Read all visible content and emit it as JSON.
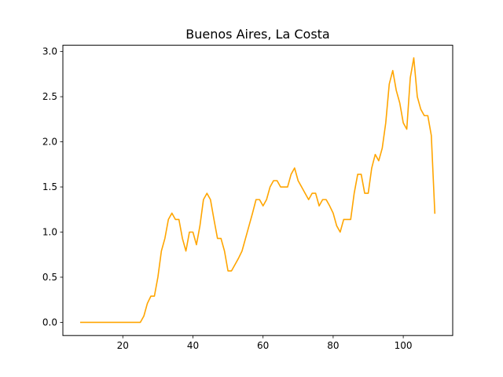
{
  "chart_data": {
    "type": "line",
    "title": "Buenos Aires, La Costa",
    "xlabel": "",
    "ylabel": "",
    "xlim": [
      2.9,
      114.1
    ],
    "ylim": [
      -0.146,
      3.07
    ],
    "xticks": [
      20,
      40,
      60,
      80,
      100
    ],
    "yticks": [
      0.0,
      0.5,
      1.0,
      1.5,
      2.0,
      2.5,
      3.0
    ],
    "xtick_labels": [
      "20",
      "40",
      "60",
      "80",
      "100"
    ],
    "ytick_labels": [
      "0.0",
      "0.5",
      "1.0",
      "1.5",
      "2.0",
      "2.5",
      "3.0"
    ],
    "grid": false,
    "series": [
      {
        "color": "#ffa500",
        "x": [
          8,
          9,
          10,
          11,
          12,
          13,
          14,
          15,
          16,
          17,
          18,
          19,
          20,
          21,
          22,
          23,
          24,
          25,
          26,
          27,
          28,
          29,
          30,
          31,
          32,
          33,
          34,
          35,
          36,
          37,
          38,
          39,
          40,
          41,
          42,
          43,
          44,
          45,
          46,
          47,
          48,
          49,
          50,
          51,
          52,
          53,
          54,
          55,
          56,
          57,
          58,
          59,
          60,
          61,
          62,
          63,
          64,
          65,
          66,
          67,
          68,
          69,
          70,
          71,
          72,
          73,
          74,
          75,
          76,
          77,
          78,
          79,
          80,
          81,
          82,
          83,
          84,
          85,
          86,
          87,
          88,
          89,
          90,
          91,
          92,
          93,
          94,
          95,
          96,
          97,
          98,
          99,
          100,
          101,
          102,
          103,
          104,
          105,
          106,
          107,
          108,
          109
        ],
        "y": [
          0,
          0,
          0,
          0,
          0,
          0,
          0,
          0,
          0,
          0,
          0,
          0,
          0,
          0,
          0,
          0,
          0,
          0,
          0.07,
          0.21,
          0.29,
          0.29,
          0.5,
          0.79,
          0.93,
          1.14,
          1.21,
          1.14,
          1.14,
          0.93,
          0.79,
          1.0,
          1.0,
          0.86,
          1.07,
          1.36,
          1.43,
          1.36,
          1.14,
          0.93,
          0.93,
          0.79,
          0.57,
          0.57,
          0.64,
          0.71,
          0.79,
          0.93,
          1.07,
          1.21,
          1.36,
          1.36,
          1.29,
          1.36,
          1.5,
          1.57,
          1.57,
          1.5,
          1.5,
          1.5,
          1.64,
          1.71,
          1.57,
          1.5,
          1.43,
          1.36,
          1.43,
          1.43,
          1.29,
          1.36,
          1.36,
          1.29,
          1.21,
          1.07,
          1.0,
          1.14,
          1.14,
          1.14,
          1.43,
          1.64,
          1.64,
          1.43,
          1.43,
          1.71,
          1.86,
          1.79,
          1.93,
          2.21,
          2.64,
          2.79,
          2.57,
          2.43,
          2.21,
          2.14,
          2.71,
          2.93,
          2.5,
          2.36,
          2.29,
          2.29,
          2.07,
          1.21
        ]
      }
    ]
  }
}
